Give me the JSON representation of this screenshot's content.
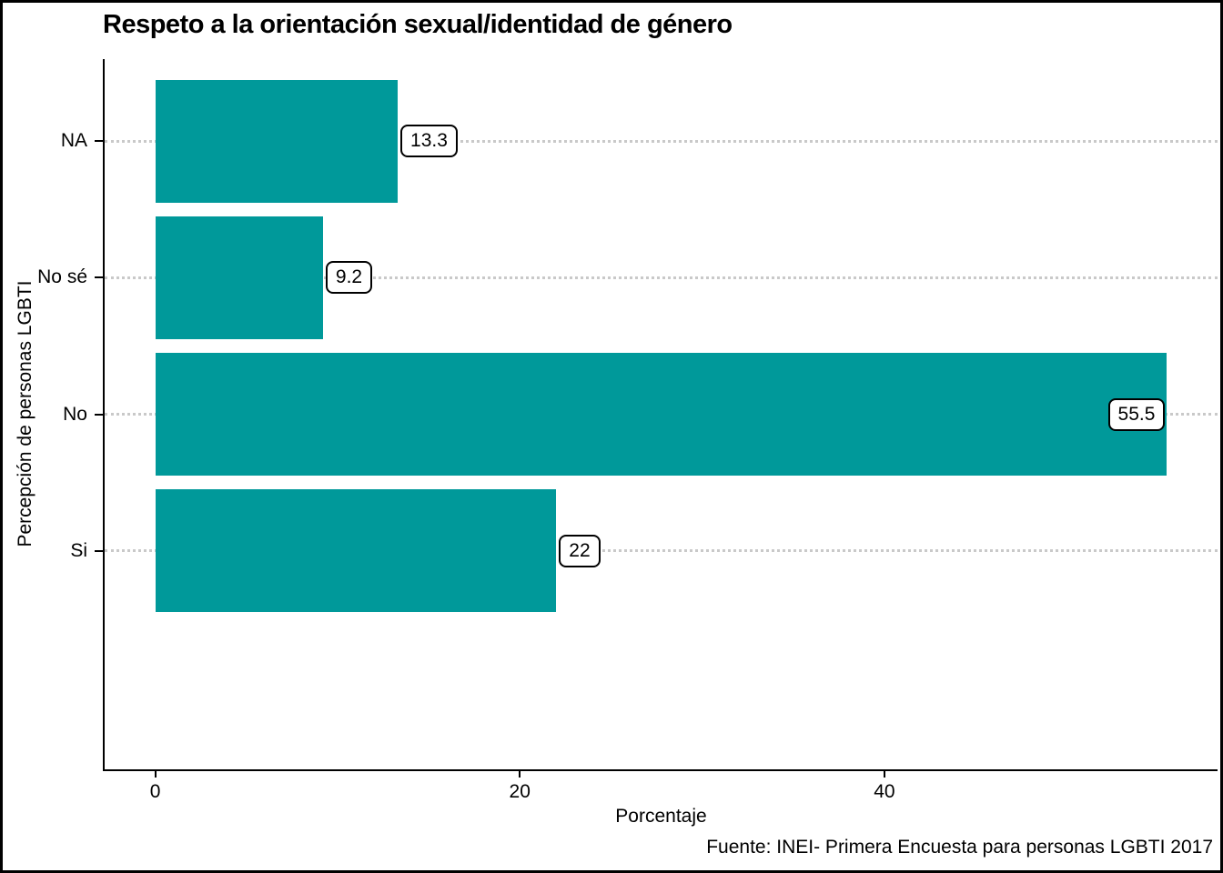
{
  "chart_data": {
    "type": "bar",
    "orientation": "horizontal",
    "title": "Respeto a la orientación sexual/identidad de género",
    "xlabel": "Porcentaje",
    "ylabel": "Percepción de personas LGBTI",
    "caption": "Fuente: INEI- Primera Encuesta para personas LGBTI 2017",
    "categories": [
      "NA",
      "No sé",
      "No",
      "Si"
    ],
    "values": [
      13.3,
      9.2,
      55.5,
      22
    ],
    "bar_labels": [
      "13.3",
      "9.2",
      "55.5",
      "22"
    ],
    "x_ticks": [
      0,
      20,
      40
    ],
    "x_tick_labels": [
      "0",
      "20",
      "40"
    ],
    "xlim": [
      -2.775,
      58.275
    ],
    "grid": "horizontal-dotted-major-y",
    "legend": "none",
    "bar_color": "#00999A",
    "grid_color": "#c9c9c9",
    "label_box_bg": "#ffffff",
    "label_box_border": "#000000"
  }
}
